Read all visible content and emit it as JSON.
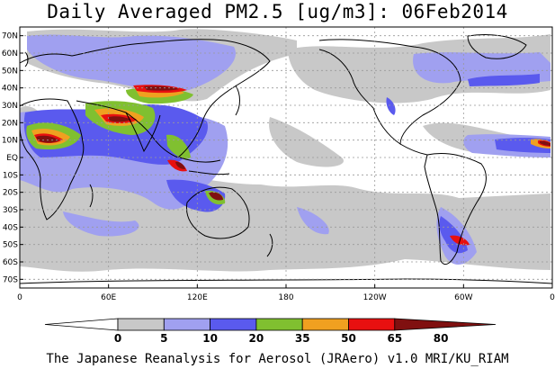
{
  "title": "Daily Averaged PM2.5 [ug/m3]: 06Feb2014",
  "footer": "The Japanese Reanalysis for Aerosol (JRAero) v1.0 MRI/KU_RIAM",
  "map": {
    "lat_labels": [
      "70N",
      "60N",
      "50N",
      "40N",
      "30N",
      "20N",
      "10N",
      "EQ",
      "10S",
      "20S",
      "30S",
      "40S",
      "50S",
      "60S",
      "70S"
    ],
    "lon_labels": [
      "0",
      "60E",
      "120E",
      "180",
      "120W",
      "60W",
      "0"
    ],
    "lat_range": [
      -75,
      75
    ],
    "lon_range": [
      0,
      360
    ]
  },
  "legend": {
    "ticks": [
      "0",
      "5",
      "10",
      "20",
      "35",
      "50",
      "65",
      "80"
    ],
    "colors": [
      "#ffffff",
      "#c8c8c8",
      "#a0a0f0",
      "#5a5aee",
      "#80c030",
      "#f0a020",
      "#e81010",
      "#801010"
    ]
  }
}
